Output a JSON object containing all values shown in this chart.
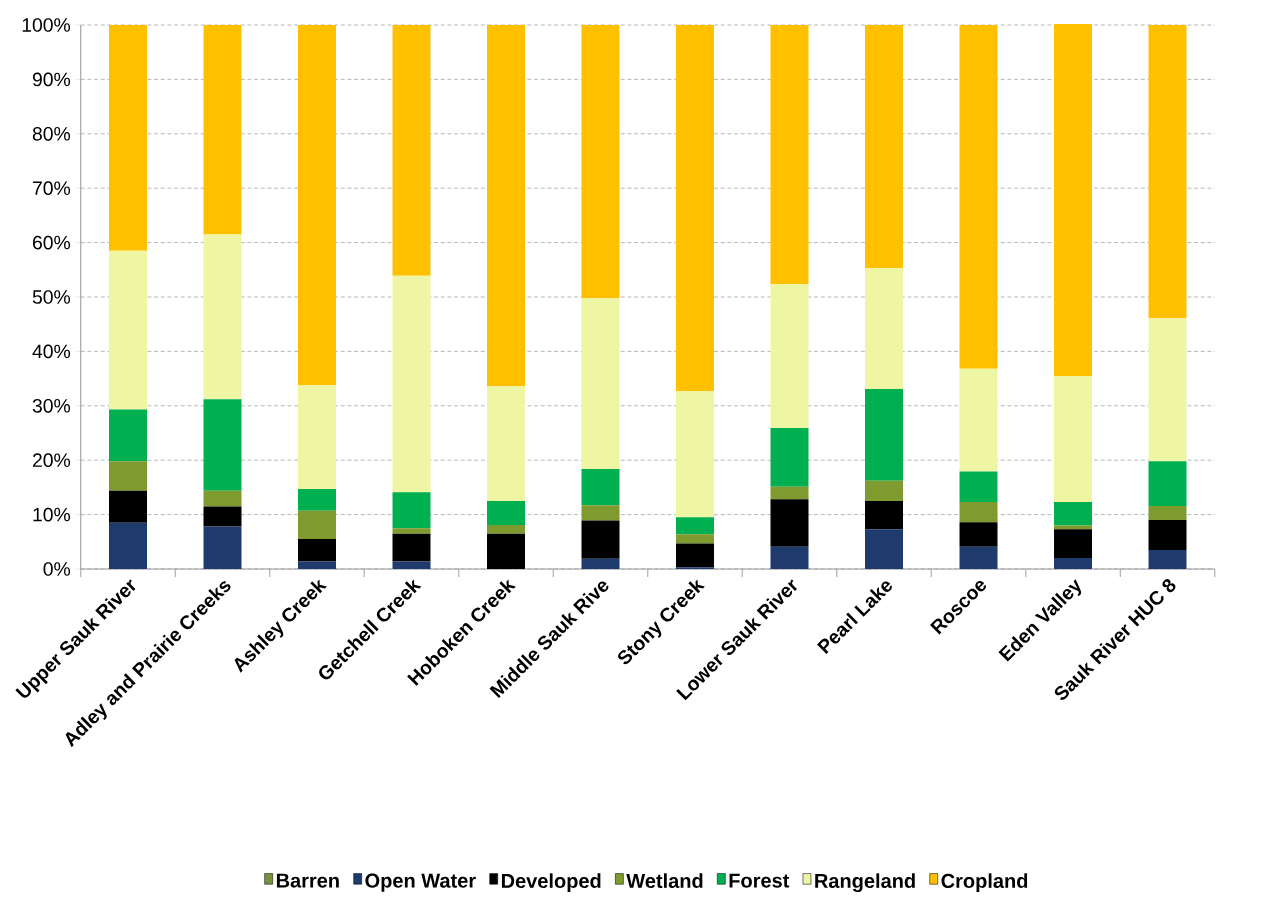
{
  "chart_data": {
    "type": "bar",
    "stacked": true,
    "categories": [
      "Upper Sauk River",
      "Adley and Prairie Creeks",
      "Ashley Creek",
      "Getchell Creek",
      "Hoboken Creek",
      "Middle Sauk Rive",
      "Stony Creek",
      "Lower Sauk River",
      "Pearl Lake",
      "Roscoe",
      "Eden Valley",
      "Sauk River HUC 8"
    ],
    "series": [
      {
        "name": "Barren",
        "color": "#77933c",
        "values": [
          0,
          0,
          0,
          0,
          0,
          0,
          0,
          0,
          0,
          0,
          0,
          0
        ]
      },
      {
        "name": "Open Water",
        "color": "#1f3b6e",
        "values": [
          8.5,
          7.8,
          1.4,
          1.4,
          0,
          1.9,
          0.3,
          4.1,
          7.3,
          4.1,
          2.0,
          3.5
        ]
      },
      {
        "name": "Developed",
        "color": "#000000",
        "values": [
          5.9,
          3.7,
          4.1,
          5.1,
          6.5,
          7.0,
          4.4,
          8.7,
          5.2,
          4.5,
          5.3,
          5.5
        ]
      },
      {
        "name": "Wetland",
        "color": "#7f9a2e",
        "values": [
          5.4,
          2.9,
          5.2,
          1.0,
          1.6,
          2.8,
          1.7,
          2.3,
          3.7,
          3.7,
          0.7,
          2.6
        ]
      },
      {
        "name": "Forest",
        "color": "#00b050",
        "values": [
          9.5,
          16.8,
          4.0,
          6.6,
          4.4,
          6.7,
          3.1,
          10.8,
          16.9,
          5.6,
          4.3,
          8.2
        ]
      },
      {
        "name": "Rangeland",
        "color": "#eef5a3",
        "values": [
          29.2,
          30.3,
          19.1,
          39.8,
          21.1,
          31.4,
          23.2,
          26.5,
          22.2,
          18.9,
          23.2,
          26.3
        ]
      },
      {
        "name": "Cropland",
        "color": "#ffc000",
        "values": [
          41.5,
          38.5,
          66.2,
          46.1,
          66.4,
          50.2,
          67.3,
          47.6,
          44.7,
          63.2,
          64.7,
          53.9
        ]
      }
    ],
    "ylim": [
      0,
      100
    ],
    "yticks": [
      {
        "value": 0,
        "label": "0%"
      },
      {
        "value": 10,
        "label": "10%"
      },
      {
        "value": 20,
        "label": "20%"
      },
      {
        "value": 30,
        "label": "30%"
      },
      {
        "value": 40,
        "label": "40%"
      },
      {
        "value": 50,
        "label": "50%"
      },
      {
        "value": 60,
        "label": "60%"
      },
      {
        "value": 70,
        "label": "70%"
      },
      {
        "value": 80,
        "label": "80%"
      },
      {
        "value": 90,
        "label": "90%"
      },
      {
        "value": 100,
        "label": "100%"
      }
    ],
    "grid": "y",
    "legend": "bottom"
  }
}
